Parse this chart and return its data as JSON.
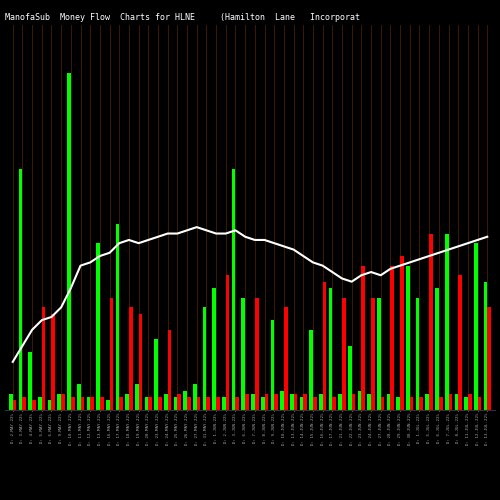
{
  "title": "ManofaSub  Money Flow  Charts for HLNE",
  "subtitle": "(Hamilton  Lane   Incorporat",
  "bg_color": "#000000",
  "bar_color_green": "#00ff00",
  "bar_color_red": "#ff0000",
  "bar_color_orange": "#8B4000",
  "line_color": "#ffffff",
  "green_bars": [
    0.5,
    7.5,
    1.8,
    0.4,
    0.3,
    0.5,
    10.5,
    0.8,
    0.4,
    5.2,
    0.3,
    5.8,
    0.5,
    0.8,
    0.4,
    2.2,
    0.5,
    0.4,
    0.6,
    0.8,
    3.2,
    3.8,
    0.4,
    7.5,
    3.5,
    0.5,
    0.4,
    2.8,
    0.6,
    0.5,
    0.4,
    2.5,
    0.5,
    3.8,
    0.5,
    2.0,
    0.6,
    0.5,
    3.5,
    0.5,
    0.4,
    4.5,
    3.5,
    0.5,
    3.8,
    5.5,
    0.5,
    0.4,
    5.2,
    4.0
  ],
  "red_bars": [
    0.3,
    0.4,
    0.3,
    3.2,
    3.0,
    0.5,
    0.4,
    0.4,
    0.4,
    0.4,
    3.5,
    0.4,
    3.2,
    3.0,
    0.4,
    0.4,
    2.5,
    0.5,
    0.4,
    0.4,
    0.4,
    0.4,
    4.2,
    0.4,
    0.5,
    3.5,
    0.5,
    0.5,
    3.2,
    0.5,
    0.5,
    0.4,
    4.0,
    0.4,
    3.5,
    0.5,
    4.5,
    3.5,
    0.4,
    4.5,
    4.8,
    0.4,
    0.4,
    5.5,
    0.4,
    0.5,
    4.2,
    0.5,
    0.4,
    3.2
  ],
  "line_values": [
    1.5,
    2.0,
    2.5,
    2.8,
    2.9,
    3.2,
    3.8,
    4.5,
    4.6,
    4.8,
    4.9,
    5.2,
    5.3,
    5.2,
    5.3,
    5.4,
    5.5,
    5.5,
    5.6,
    5.7,
    5.6,
    5.5,
    5.5,
    5.6,
    5.4,
    5.3,
    5.3,
    5.2,
    5.1,
    5.0,
    4.8,
    4.6,
    4.5,
    4.3,
    4.1,
    4.0,
    4.2,
    4.3,
    4.2,
    4.4,
    4.5,
    4.6,
    4.7,
    4.8,
    4.9,
    5.0,
    5.1,
    5.2,
    5.3,
    5.4
  ],
  "xlabel_labels": [
    "D: 2-MAY-22%",
    "D: 3-MAY-22%",
    "D: 4-MAY-22%",
    "D: 5-MAY-22%",
    "D: 6-MAY-22%",
    "D: 9-MAY-22%",
    "D: 10-MAY-22%",
    "D: 11-MAY-22%",
    "D: 12-MAY-22%",
    "D: 13-MAY-22%",
    "D: 16-MAY-22%",
    "D: 17-MAY-22%",
    "D: 18-MAY-22%",
    "D: 19-MAY-22%",
    "D: 20-MAY-22%",
    "D: 23-MAY-22%",
    "D: 24-MAY-22%",
    "D: 25-MAY-22%",
    "D: 26-MAY-22%",
    "D: 27-MAY-22%",
    "D: 31-MAY-22%",
    "D: 1-JUN-22%",
    "D: 2-JUN-22%",
    "D: 3-JUN-22%",
    "D: 6-JUN-22%",
    "D: 7-JUN-22%",
    "D: 8-JUN-22%",
    "D: 9-JUN-22%",
    "D: 10-JUN-22%",
    "D: 13-JUN-22%",
    "D: 14-JUN-22%",
    "D: 15-JUN-22%",
    "D: 16-JUN-22%",
    "D: 17-JUN-22%",
    "D: 21-JUN-22%",
    "D: 22-JUN-22%",
    "D: 23-JUN-22%",
    "D: 24-JUN-22%",
    "D: 27-JUN-22%",
    "D: 28-JUN-22%",
    "D: 29-JUN-22%",
    "D: 30-JUN-22%",
    "D: 1-JUL-22%",
    "D: 5-JUL-22%",
    "D: 6-JUL-22%",
    "D: 7-JUL-22%",
    "D: 8-JUL-22%",
    "D: 11-JUL-22%",
    "D: 12-JUL-22%",
    "D: 13-JUL-22%"
  ]
}
